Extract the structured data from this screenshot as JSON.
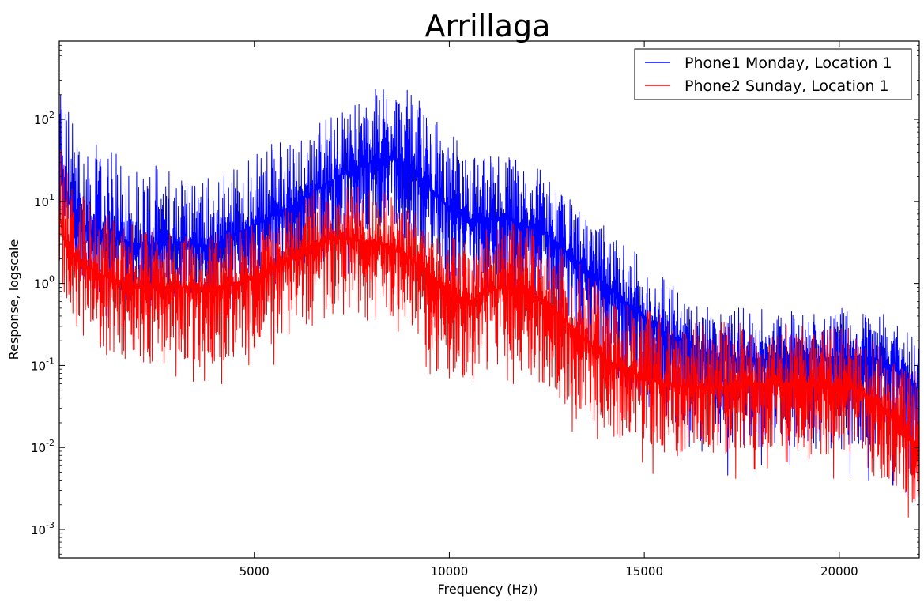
{
  "chart_data": {
    "type": "line",
    "title": "Arrillaga",
    "xlabel": "Frequency (Hz))",
    "ylabel": "Response, logscale",
    "xlim": [
      0,
      22050
    ],
    "ylim": [
      0.00045,
      900
    ],
    "yscale": "log",
    "x_ticks": [
      5000,
      10000,
      15000,
      20000
    ],
    "x_tick_labels": [
      "5000",
      "10000",
      "15000",
      "20000"
    ],
    "y_ticks": [
      {
        "value": 100,
        "base": "10",
        "exp": "2"
      },
      {
        "value": 10,
        "base": "10",
        "exp": "1"
      },
      {
        "value": 1,
        "base": "10",
        "exp": "0"
      },
      {
        "value": 0.1,
        "base": "10",
        "exp": "-1"
      },
      {
        "value": 0.01,
        "base": "10",
        "exp": "-2"
      },
      {
        "value": 0.001,
        "base": "10",
        "exp": "-3"
      }
    ],
    "grid": false,
    "legend_position": "top-right",
    "series": [
      {
        "name": "Phone1 Monday, Location 1",
        "color": "#0000ff",
        "x": [
          0,
          100,
          300,
          600,
          1000,
          1500,
          2000,
          2500,
          3000,
          3500,
          4000,
          4500,
          5000,
          5500,
          6000,
          6500,
          7000,
          7500,
          8000,
          8500,
          9000,
          9500,
          10000,
          10500,
          11000,
          11500,
          12000,
          12500,
          13000,
          13500,
          14000,
          14500,
          15000,
          15500,
          16000,
          16500,
          17000,
          17500,
          18000,
          18500,
          19000,
          19500,
          20000,
          20500,
          21000,
          21500,
          22050
        ],
        "peak": [
          600,
          300,
          120,
          60,
          50,
          40,
          30,
          28,
          25,
          22,
          22,
          28,
          40,
          55,
          70,
          90,
          120,
          170,
          220,
          300,
          220,
          120,
          70,
          50,
          40,
          40,
          30,
          22,
          12,
          7,
          5,
          3,
          2,
          1.2,
          0.8,
          0.6,
          0.5,
          0.5,
          0.5,
          0.5,
          0.45,
          0.5,
          0.5,
          0.5,
          0.45,
          0.35,
          0.2
        ],
        "level": [
          30,
          15,
          8,
          5,
          4,
          3.5,
          3,
          3,
          3,
          2.8,
          3,
          4,
          5,
          7,
          9,
          13,
          18,
          25,
          30,
          35,
          28,
          15,
          8,
          6,
          6,
          6,
          5,
          4,
          2.5,
          1.5,
          1,
          0.6,
          0.4,
          0.25,
          0.2,
          0.15,
          0.12,
          0.12,
          0.12,
          0.12,
          0.12,
          0.12,
          0.13,
          0.13,
          0.12,
          0.09,
          0.05
        ],
        "trough": [
          3,
          1.5,
          0.8,
          0.5,
          0.4,
          0.35,
          0.3,
          0.3,
          0.3,
          0.25,
          0.3,
          0.35,
          0.4,
          0.5,
          0.6,
          0.8,
          1,
          1.3,
          1.5,
          1.5,
          1.3,
          0.8,
          0.5,
          0.35,
          0.3,
          0.3,
          0.25,
          0.2,
          0.12,
          0.07,
          0.04,
          0.025,
          0.015,
          0.01,
          0.006,
          0.005,
          0.004,
          0.004,
          0.004,
          0.004,
          0.004,
          0.004,
          0.004,
          0.004,
          0.004,
          0.003,
          0.0015
        ]
      },
      {
        "name": "Phone2 Sunday, Location 1",
        "color": "#ff0000",
        "x": [
          0,
          100,
          300,
          600,
          1000,
          1500,
          2000,
          2500,
          3000,
          3500,
          4000,
          4500,
          5000,
          5500,
          6000,
          6500,
          7000,
          7500,
          8000,
          8500,
          9000,
          9500,
          10000,
          10500,
          11000,
          11500,
          12000,
          12500,
          13000,
          13500,
          14000,
          14500,
          15000,
          15500,
          16000,
          16500,
          17000,
          17500,
          18000,
          18500,
          19000,
          19500,
          20000,
          20500,
          21000,
          21500,
          22050
        ],
        "peak": [
          80,
          40,
          20,
          12,
          8,
          6,
          5,
          4.5,
          4,
          4,
          4,
          4.5,
          6,
          9,
          12,
          14,
          16,
          16,
          15,
          13,
          9,
          6,
          4,
          3.5,
          5,
          5.5,
          5,
          4,
          2.5,
          1.5,
          0.9,
          0.6,
          0.5,
          0.4,
          0.35,
          0.35,
          0.35,
          0.35,
          0.35,
          0.35,
          0.35,
          0.35,
          0.3,
          0.28,
          0.2,
          0.12,
          0.08
        ],
        "level": [
          8,
          4,
          2.5,
          1.8,
          1.3,
          1.1,
          0.9,
          0.9,
          0.9,
          0.9,
          0.9,
          1,
          1.2,
          1.6,
          2.2,
          3,
          3.5,
          3.5,
          3.2,
          2.8,
          2,
          1.3,
          0.8,
          0.6,
          0.8,
          0.9,
          0.8,
          0.6,
          0.35,
          0.2,
          0.12,
          0.09,
          0.07,
          0.06,
          0.055,
          0.055,
          0.055,
          0.06,
          0.06,
          0.06,
          0.06,
          0.06,
          0.055,
          0.05,
          0.035,
          0.02,
          0.01
        ],
        "trough": [
          0.8,
          0.4,
          0.2,
          0.12,
          0.08,
          0.06,
          0.05,
          0.05,
          0.05,
          0.05,
          0.05,
          0.06,
          0.07,
          0.09,
          0.12,
          0.15,
          0.18,
          0.18,
          0.16,
          0.14,
          0.1,
          0.07,
          0.04,
          0.03,
          0.035,
          0.04,
          0.035,
          0.025,
          0.015,
          0.01,
          0.007,
          0.006,
          0.005,
          0.004,
          0.004,
          0.004,
          0.004,
          0.004,
          0.004,
          0.004,
          0.004,
          0.004,
          0.003,
          0.003,
          0.002,
          0.0015,
          0.001
        ]
      }
    ]
  }
}
